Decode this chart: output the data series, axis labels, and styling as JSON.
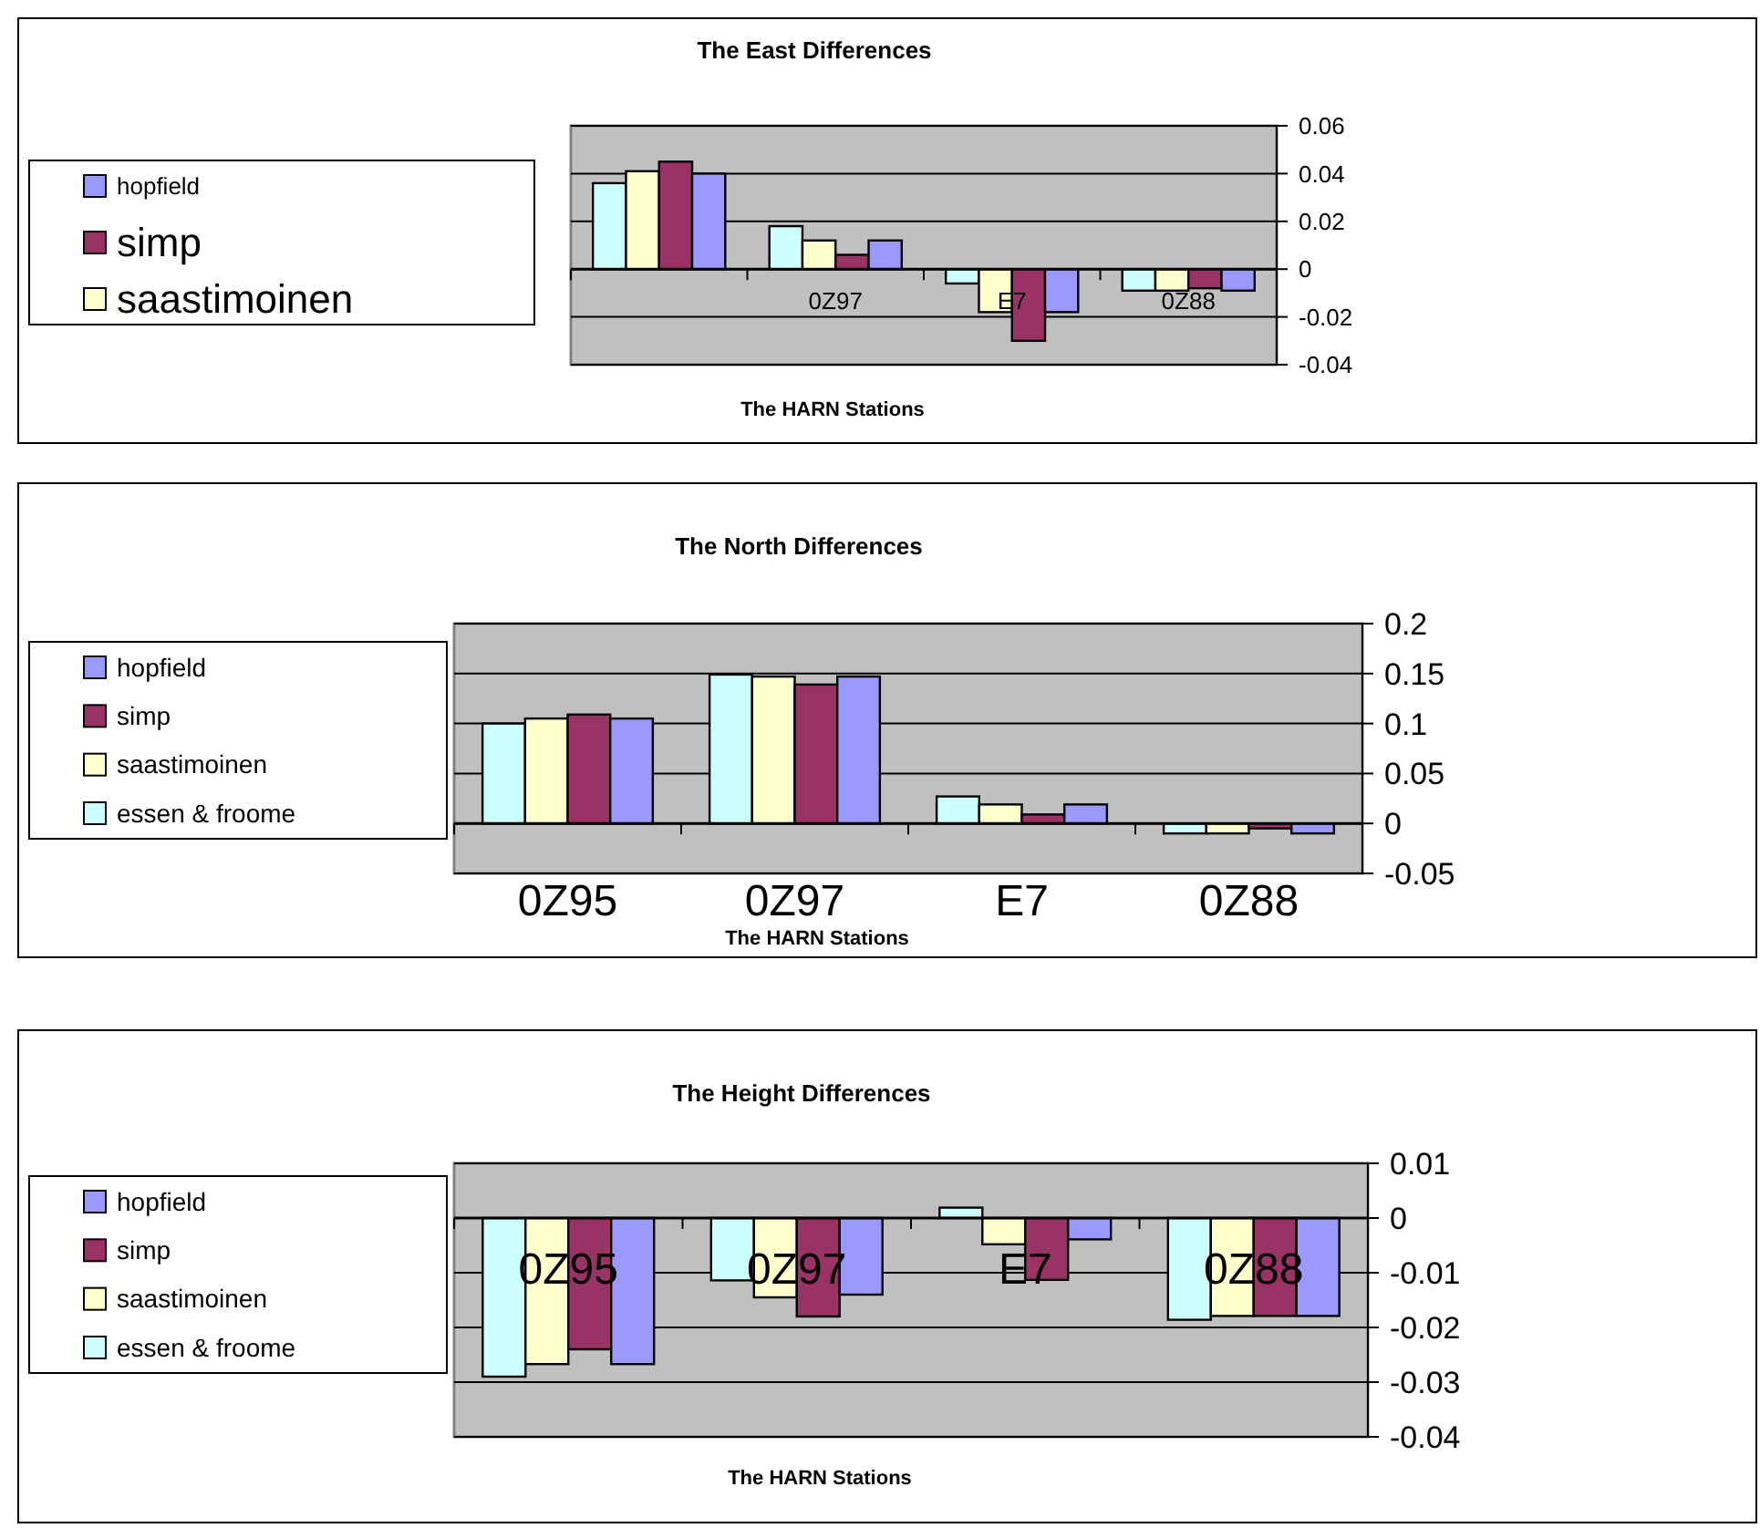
{
  "chart_data": [
    {
      "type": "bar",
      "title": "The East Differences",
      "xlabel": "The HARN Stations",
      "categories": [
        null,
        "0Z97",
        "E7",
        "0Z88"
      ],
      "series": [
        {
          "color": "#ccffff",
          "values": [
            0.036,
            0.018,
            -0.006,
            -0.009
          ]
        },
        {
          "name": "saastimoinen",
          "color": "#ffffcc",
          "values": [
            0.041,
            0.012,
            -0.018,
            -0.009
          ]
        },
        {
          "name": "simp",
          "color": "#993366",
          "values": [
            0.045,
            0.006,
            -0.03,
            -0.008
          ]
        },
        {
          "name": "hopfield",
          "color": "#9999ff",
          "values": [
            0.04,
            0.012,
            -0.018,
            -0.009
          ]
        }
      ],
      "ylim": [
        -0.04,
        0.06
      ],
      "yticks": [
        -0.04,
        -0.02,
        0,
        0.02,
        0.04,
        0.06
      ],
      "grid": "y",
      "legend": "left"
    },
    {
      "type": "bar",
      "title": "The North Differences",
      "xlabel": "The HARN Stations",
      "categories": [
        "0Z95",
        "0Z97",
        "E7",
        "0Z88"
      ],
      "series": [
        {
          "name": "essen & froome",
          "color": "#ccffff",
          "values": [
            0.1,
            0.149,
            0.027,
            -0.01
          ]
        },
        {
          "name": "saastimoinen",
          "color": "#ffffcc",
          "values": [
            0.105,
            0.147,
            0.019,
            -0.01
          ]
        },
        {
          "name": "simp",
          "color": "#993366",
          "values": [
            0.109,
            0.139,
            0.009,
            -0.005
          ]
        },
        {
          "name": "hopfield",
          "color": "#9999ff",
          "values": [
            0.105,
            0.147,
            0.019,
            -0.01
          ]
        }
      ],
      "ylim": [
        -0.05,
        0.2
      ],
      "yticks": [
        -0.05,
        0,
        0.05,
        0.1,
        0.15,
        0.2
      ],
      "grid": "y",
      "legend": "left"
    },
    {
      "type": "bar",
      "title": "The Height Differences",
      "xlabel": "The HARN Stations",
      "categories": [
        "0Z95",
        "0Z97",
        "E7",
        "0Z88"
      ],
      "series": [
        {
          "name": "essen & froome",
          "color": "#ccffff",
          "values": [
            -0.029,
            -0.0114,
            0.0019,
            -0.0186
          ]
        },
        {
          "name": "saastimoinen",
          "color": "#ffffcc",
          "values": [
            -0.0267,
            -0.0145,
            -0.0048,
            -0.0179
          ]
        },
        {
          "name": "simp",
          "color": "#993366",
          "values": [
            -0.024,
            -0.018,
            -0.0113,
            -0.0179
          ]
        },
        {
          "name": "hopfield",
          "color": "#9999ff",
          "values": [
            -0.0267,
            -0.014,
            -0.0039,
            -0.0179
          ]
        }
      ],
      "ylim": [
        -0.04,
        0.01
      ],
      "yticks": [
        -0.04,
        -0.03,
        -0.02,
        -0.01,
        0,
        0.01
      ],
      "grid": "y",
      "legend": "left"
    }
  ]
}
